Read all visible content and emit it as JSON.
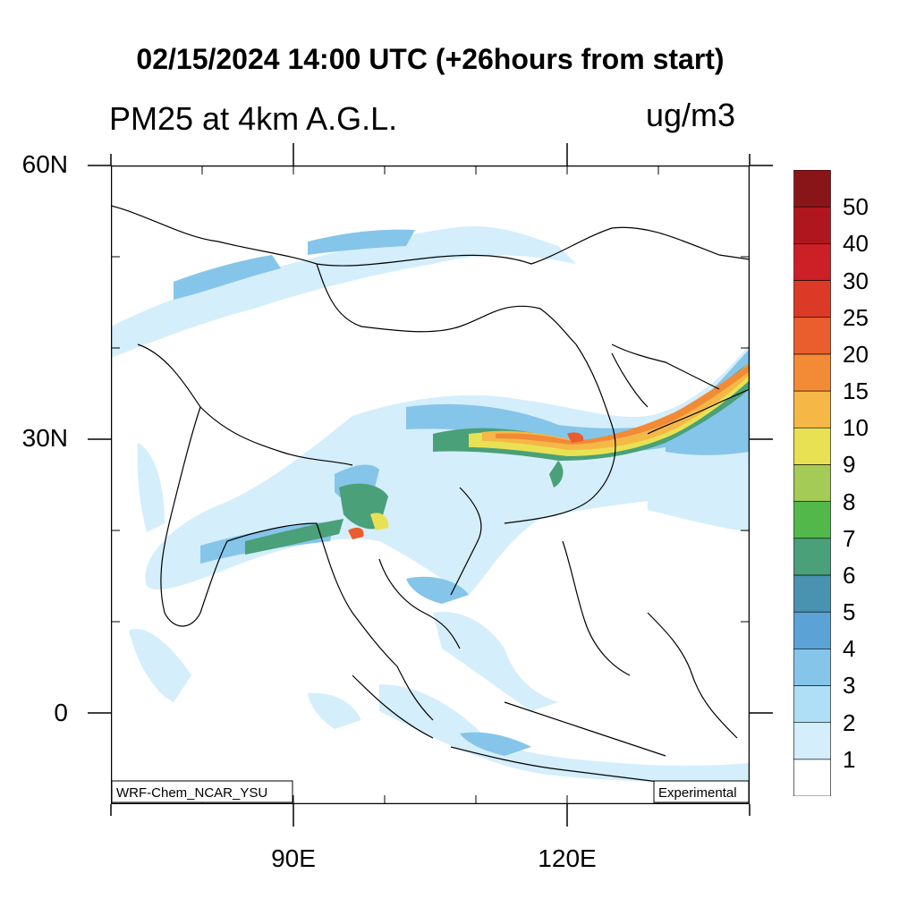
{
  "header": {
    "title": "02/15/2024 14:00 UTC (+26hours from start)",
    "subtitle": "PM25 at 4km A.G.L.",
    "units": "ug/m3"
  },
  "axes": {
    "lat_labels": [
      "60N",
      "30N",
      "0"
    ],
    "lon_labels": [
      "90E",
      "120E"
    ]
  },
  "map": {
    "model_label": "WRF-Chem_NCAR_YSU",
    "status_label": "Experimental",
    "background_color": "#ffffff",
    "coastline_color": "#000000"
  },
  "legend": {
    "labels": [
      "1",
      "2",
      "3",
      "4",
      "5",
      "6",
      "7",
      "8",
      "9",
      "10",
      "15",
      "20",
      "25",
      "30",
      "40",
      "50"
    ],
    "colors": [
      "#ffffff",
      "#d4eefb",
      "#aedff5",
      "#86c5ea",
      "#5ba3d6",
      "#4993b0",
      "#4aa078",
      "#52b84a",
      "#a4cb55",
      "#e9e154",
      "#f5b846",
      "#f28a36",
      "#ea5d2c",
      "#dc3a27",
      "#cc1f26",
      "#b0161d",
      "#8a1518"
    ]
  }
}
